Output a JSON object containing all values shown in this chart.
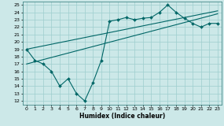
{
  "xlabel": "Humidex (Indice chaleur)",
  "bg_color": "#cce8e8",
  "grid_color": "#9ecece",
  "line_color": "#006666",
  "xlim": [
    -0.5,
    23.5
  ],
  "ylim": [
    11.5,
    25.5
  ],
  "xticks": [
    0,
    1,
    2,
    3,
    4,
    5,
    6,
    7,
    8,
    9,
    10,
    11,
    12,
    13,
    14,
    15,
    16,
    17,
    18,
    19,
    20,
    21,
    22,
    23
  ],
  "yticks": [
    12,
    13,
    14,
    15,
    16,
    17,
    18,
    19,
    20,
    21,
    22,
    23,
    24,
    25
  ],
  "line1_x": [
    0,
    1,
    2,
    3,
    4,
    5,
    6,
    7,
    8,
    9,
    10,
    11,
    12,
    13,
    14,
    15,
    16,
    17,
    18,
    19,
    20,
    21,
    22,
    23
  ],
  "line1_y": [
    19.0,
    17.5,
    17.0,
    16.0,
    14.0,
    15.0,
    13.0,
    12.0,
    14.5,
    17.5,
    22.8,
    23.0,
    23.3,
    23.0,
    23.2,
    23.3,
    24.0,
    25.0,
    24.0,
    23.2,
    22.5,
    22.0,
    22.5,
    22.5
  ],
  "line2_x": [
    0,
    23
  ],
  "line2_y": [
    17.0,
    23.8
  ],
  "line3_x": [
    0,
    23
  ],
  "line3_y": [
    19.0,
    24.2
  ]
}
